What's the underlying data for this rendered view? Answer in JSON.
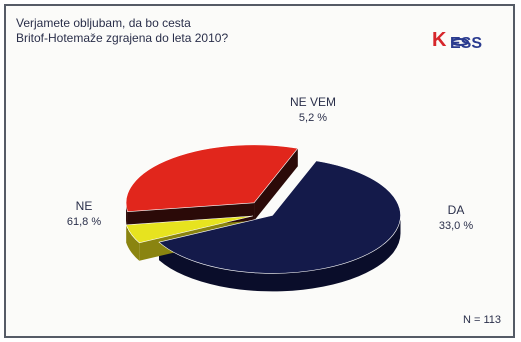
{
  "title_lines": [
    "Verjamete obljubam, da bo cesta",
    "Britof-Hotemaže zgrajena do leta 2010?"
  ],
  "logo": {
    "text_k": "K",
    "text_rest": "ESS",
    "colors": {
      "red": "#d6262b",
      "blue": "#2a3b8f"
    }
  },
  "footer": {
    "n_label": "N = 113"
  },
  "chart_data": {
    "type": "pie",
    "title": "Verjamete obljubam, da bo cesta Britof-Hotemaže zgrajena do leta 2010?",
    "slices": [
      {
        "label": "NE",
        "display": "61,8 %",
        "value": 61.8,
        "color": "#141a4a",
        "side": "#0a0d2a"
      },
      {
        "label": "NE VEM",
        "display": "5,2 %",
        "value": 5.2,
        "color": "#e7e31f",
        "side": "#8a8410"
      },
      {
        "label": "DA",
        "display": "33,0 %",
        "value": 33.0,
        "color": "#e1261c",
        "side": "#2b0a08"
      }
    ],
    "note": "N = 113"
  }
}
